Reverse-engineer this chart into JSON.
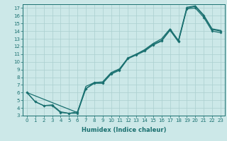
{
  "xlabel": "Humidex (Indice chaleur)",
  "xlim": [
    -0.5,
    23.5
  ],
  "ylim": [
    3,
    17.5
  ],
  "xticks": [
    0,
    1,
    2,
    3,
    4,
    5,
    6,
    7,
    8,
    9,
    10,
    11,
    12,
    13,
    14,
    15,
    16,
    17,
    18,
    19,
    20,
    21,
    22,
    23
  ],
  "yticks": [
    3,
    4,
    5,
    6,
    7,
    8,
    9,
    10,
    11,
    12,
    13,
    14,
    15,
    16,
    17
  ],
  "bg_color": "#cce8e8",
  "grid_color": "#aacfcf",
  "line_color": "#1a7070",
  "upper_x": [
    0,
    6,
    7,
    8,
    9,
    10,
    11,
    12,
    13,
    14,
    15,
    16,
    17,
    18,
    19,
    20,
    21,
    22,
    23
  ],
  "upper_y": [
    6.0,
    3.4,
    6.8,
    7.3,
    7.4,
    8.6,
    9.1,
    10.5,
    11.0,
    11.6,
    12.4,
    13.0,
    14.3,
    12.8,
    17.1,
    17.3,
    16.1,
    14.3,
    14.1
  ],
  "mid_x": [
    0,
    1,
    2,
    3,
    4,
    5,
    6,
    7,
    8,
    9,
    10,
    11,
    12,
    13,
    14,
    15,
    16,
    17,
    18,
    19,
    20,
    21,
    22,
    23
  ],
  "mid_y": [
    6.0,
    4.8,
    4.3,
    4.4,
    3.5,
    3.3,
    3.5,
    6.5,
    7.3,
    7.3,
    8.5,
    9.0,
    10.5,
    11.0,
    11.5,
    12.3,
    12.8,
    14.2,
    12.7,
    17.0,
    17.2,
    16.0,
    14.2,
    14.0
  ],
  "low_x": [
    0,
    1,
    2,
    3,
    4,
    5,
    6,
    7,
    8,
    9,
    10,
    11,
    12,
    13,
    14,
    15,
    16,
    17,
    18,
    19,
    20,
    21,
    22,
    23
  ],
  "low_y": [
    6.0,
    4.8,
    4.3,
    4.3,
    3.4,
    3.3,
    3.3,
    6.5,
    7.2,
    7.2,
    8.4,
    8.9,
    10.4,
    10.9,
    11.4,
    12.2,
    12.7,
    14.1,
    12.6,
    16.9,
    17.0,
    15.8,
    14.0,
    13.8
  ],
  "xlabel_fontsize": 6.0,
  "tick_fontsize": 5.0
}
